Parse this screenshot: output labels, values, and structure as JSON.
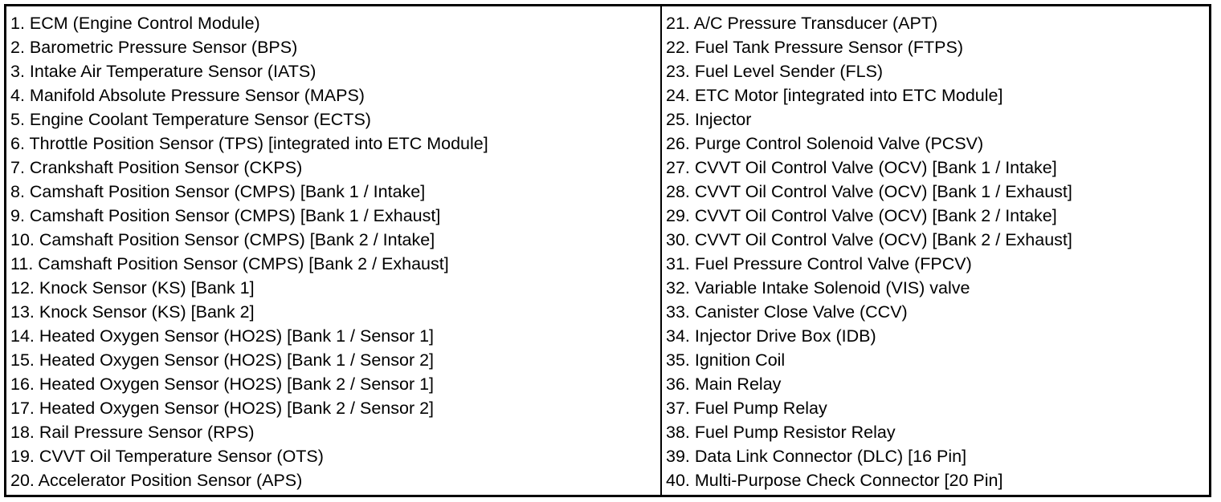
{
  "left_column": [
    "1. ECM (Engine Control Module)",
    "2. Barometric Pressure Sensor (BPS)",
    "3. Intake Air Temperature Sensor (IATS)",
    "4. Manifold Absolute Pressure Sensor (MAPS)",
    "5. Engine Coolant Temperature Sensor (ECTS)",
    "6. Throttle Position Sensor (TPS) [integrated into ETC Module]",
    "7. Crankshaft Position Sensor (CKPS)",
    "8. Camshaft Position Sensor (CMPS) [Bank 1 / Intake]",
    "9. Camshaft Position Sensor (CMPS) [Bank 1 / Exhaust]",
    "10. Camshaft Position Sensor (CMPS) [Bank 2 / Intake]",
    "11. Camshaft Position Sensor (CMPS) [Bank 2 / Exhaust]",
    "12. Knock Sensor (KS) [Bank 1]",
    "13. Knock Sensor (KS) [Bank 2]",
    "14. Heated Oxygen Sensor (HO2S) [Bank 1 / Sensor 1]",
    "15. Heated Oxygen Sensor (HO2S) [Bank 1 / Sensor 2]",
    "16. Heated Oxygen Sensor (HO2S) [Bank 2 / Sensor 1]",
    "17. Heated Oxygen Sensor (HO2S) [Bank 2 / Sensor 2]",
    "18. Rail Pressure Sensor (RPS)",
    "19. CVVT Oil Temperature Sensor (OTS)",
    "20. Accelerator Position Sensor (APS)"
  ],
  "right_column": [
    "21. A/C Pressure Transducer (APT)",
    "22. Fuel Tank Pressure Sensor (FTPS)",
    "23. Fuel Level Sender (FLS)",
    "24. ETC Motor [integrated into ETC Module]",
    "25. Injector",
    "26. Purge Control Solenoid Valve (PCSV)",
    "27. CVVT Oil Control Valve (OCV) [Bank 1 / Intake]",
    "28. CVVT Oil Control Valve (OCV) [Bank 1 / Exhaust]",
    "29. CVVT Oil Control Valve (OCV) [Bank 2 / Intake]",
    "30. CVVT Oil Control Valve (OCV) [Bank 2 / Exhaust]",
    "31. Fuel Pressure Control Valve (FPCV)",
    "32. Variable Intake Solenoid (VIS) valve",
    "33. Canister Close Valve (CCV)",
    "34. Injector Drive Box (IDB)",
    "35. Ignition Coil",
    "36. Main Relay",
    "37. Fuel Pump Relay",
    "38. Fuel Pump Resistor Relay",
    "39. Data Link Connector (DLC) [16 Pin]",
    "40. Multi-Purpose Check Connector [20 Pin]"
  ]
}
